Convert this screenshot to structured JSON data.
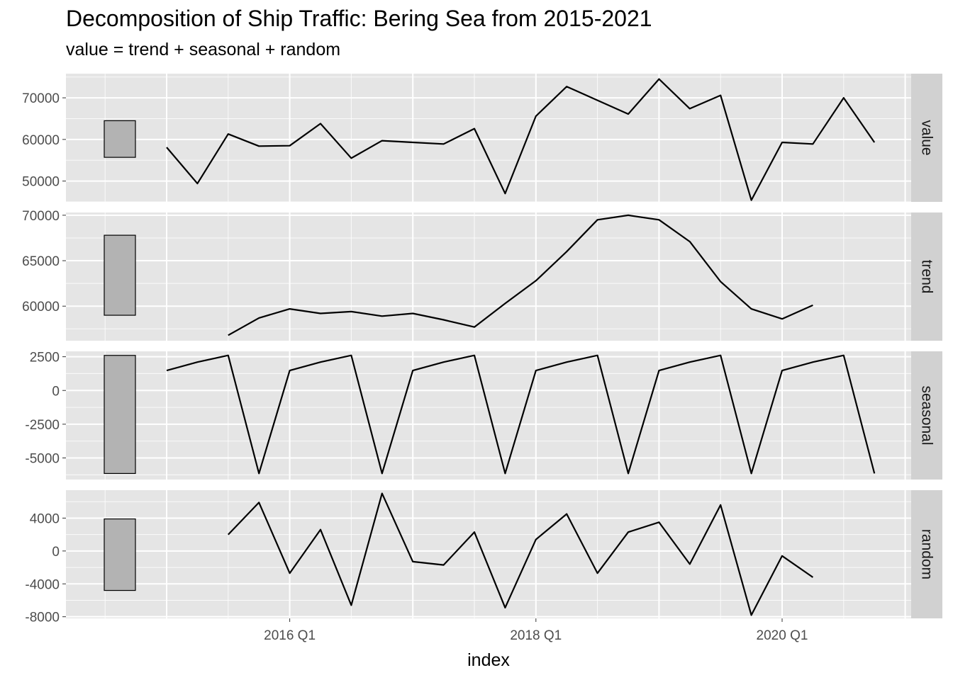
{
  "title": "Decomposition of Ship Traffic: Bering Sea from 2015-2021",
  "subtitle": "value = trend + seasonal + random",
  "colors": {
    "panel_background": "#e5e5e5",
    "grid_line": "#ffffff",
    "strip_background": "#d1d1d1",
    "line": "#000000",
    "range_bar_fill": "#b3b3b3"
  },
  "chart_data": {
    "type": "line",
    "xlabel": "index",
    "x": [
      "2015 Q1",
      "2015 Q2",
      "2015 Q3",
      "2015 Q4",
      "2016 Q1",
      "2016 Q2",
      "2016 Q3",
      "2016 Q4",
      "2017 Q1",
      "2017 Q2",
      "2017 Q3",
      "2017 Q4",
      "2018 Q1",
      "2018 Q2",
      "2018 Q3",
      "2018 Q4",
      "2019 Q1",
      "2019 Q2",
      "2019 Q3",
      "2019 Q4",
      "2020 Q1",
      "2020 Q2",
      "2020 Q3",
      "2020 Q4"
    ],
    "x_ticks": [
      "2016 Q1",
      "2018 Q1",
      "2020 Q1"
    ],
    "grid": true,
    "facet_labels_position": "right",
    "panels": [
      {
        "name": "value",
        "ylim": [
          45000,
          75800
        ],
        "y_ticks": [
          50000,
          60000,
          70000
        ],
        "y_tick_labels": [
          "50000",
          "60000",
          "70000"
        ],
        "range_bar": [
          55700,
          64500
        ],
        "values": [
          58100,
          49400,
          61300,
          58400,
          58500,
          63800,
          55500,
          59700,
          59300,
          58900,
          62600,
          47000,
          65600,
          72700,
          69400,
          66100,
          74500,
          67400,
          70600,
          45400,
          59300,
          58900,
          70000,
          59300
        ]
      },
      {
        "name": "trend",
        "ylim": [
          56200,
          70300
        ],
        "y_ticks": [
          60000,
          65000,
          70000
        ],
        "y_tick_labels": [
          "60000",
          "65000",
          "70000"
        ],
        "range_bar": [
          59000,
          67800
        ],
        "values": [
          null,
          null,
          56800,
          58700,
          59700,
          59200,
          59400,
          58900,
          59200,
          58500,
          57700,
          60300,
          62800,
          66000,
          69500,
          70000,
          69500,
          67100,
          62700,
          59700,
          58600,
          60100,
          null,
          null
        ]
      },
      {
        "name": "seasonal",
        "ylim": [
          -6600,
          2900
        ],
        "y_ticks": [
          -5000,
          -2500,
          0,
          2500
        ],
        "y_tick_labels": [
          "-5000",
          "-2500",
          "0",
          "2500"
        ],
        "range_bar": [
          -6150,
          2600
        ],
        "values": [
          1480,
          2100,
          2600,
          -6150,
          1480,
          2100,
          2600,
          -6150,
          1480,
          2100,
          2600,
          -6150,
          1480,
          2100,
          2600,
          -6150,
          1480,
          2100,
          2600,
          -6150,
          1480,
          2100,
          2600,
          -6150
        ]
      },
      {
        "name": "random",
        "ylim": [
          -8200,
          7400
        ],
        "y_ticks": [
          -8000,
          -4000,
          0,
          4000
        ],
        "y_tick_labels": [
          "-8000",
          "-4000",
          "0",
          "4000"
        ],
        "range_bar": [
          -4800,
          3900
        ],
        "values": [
          null,
          null,
          2000,
          5900,
          -2700,
          2600,
          -6600,
          7000,
          -1300,
          -1700,
          2300,
          -6900,
          1400,
          4500,
          -2700,
          2300,
          3500,
          -1600,
          5600,
          -7800,
          -600,
          -3200,
          null,
          null
        ]
      }
    ]
  }
}
